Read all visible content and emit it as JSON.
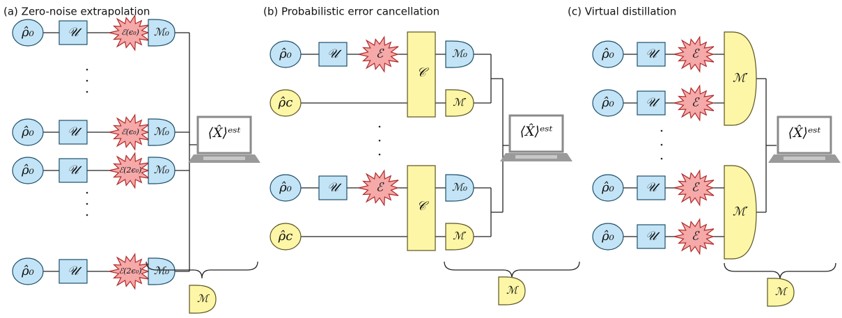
{
  "panels": [
    {
      "title": "(a) Zero-noise extrapolation",
      "rows": [
        {
          "state": "ρ̂₀",
          "unitary": "𝒰",
          "noise": "ℰ(ϵ₀)",
          "measure": "ℳ₀"
        },
        {
          "state": "ρ̂₀",
          "unitary": "𝒰",
          "noise": "ℰ(ϵ₀)",
          "measure": "ℳ₀"
        },
        {
          "state": "ρ̂₀",
          "unitary": "𝒰",
          "noise": "ℰ(2ϵ₀)",
          "measure": "ℳ₀"
        },
        {
          "state": "ρ̂₀",
          "unitary": "𝒰",
          "noise": "ℰ(2ϵ₀)",
          "measure": "ℳ₀"
        }
      ],
      "estimator": "⟨X̂⟩ᵉˢᵗ",
      "combined": "ℳ"
    },
    {
      "title": "(b) Probabilistic error cancellation",
      "groups": [
        {
          "rows": [
            {
              "state": "ρ̂₀",
              "unitary": "𝒰",
              "noise": "ℰ",
              "measure": "ℳ₀"
            },
            {
              "state": "ρ̂c",
              "measure": "ℳ′"
            }
          ],
          "channel": "𝒞"
        },
        {
          "rows": [
            {
              "state": "ρ̂₀",
              "unitary": "𝒰",
              "noise": "ℰ",
              "measure": "ℳ₀"
            },
            {
              "state": "ρ̂c",
              "measure": "ℳ′"
            }
          ],
          "channel": "𝒞"
        }
      ],
      "estimator": "⟨X̂⟩ᵉˢᵗ",
      "combined": "ℳ"
    },
    {
      "title": "(c) Virtual distillation",
      "groups": [
        {
          "rows": [
            {
              "state": "ρ̂₀",
              "unitary": "𝒰",
              "noise": "ℰ"
            },
            {
              "state": "ρ̂₀",
              "unitary": "𝒰",
              "noise": "ℰ"
            }
          ],
          "measure": "ℳ′"
        },
        {
          "rows": [
            {
              "state": "ρ̂₀",
              "unitary": "𝒰",
              "noise": "ℰ"
            },
            {
              "state": "ρ̂₀",
              "unitary": "𝒰",
              "noise": "ℰ"
            }
          ],
          "measure": "ℳ′"
        }
      ],
      "estimator": "⟨X̂⟩ᵉˢᵗ",
      "combined": "ℳ"
    }
  ]
}
